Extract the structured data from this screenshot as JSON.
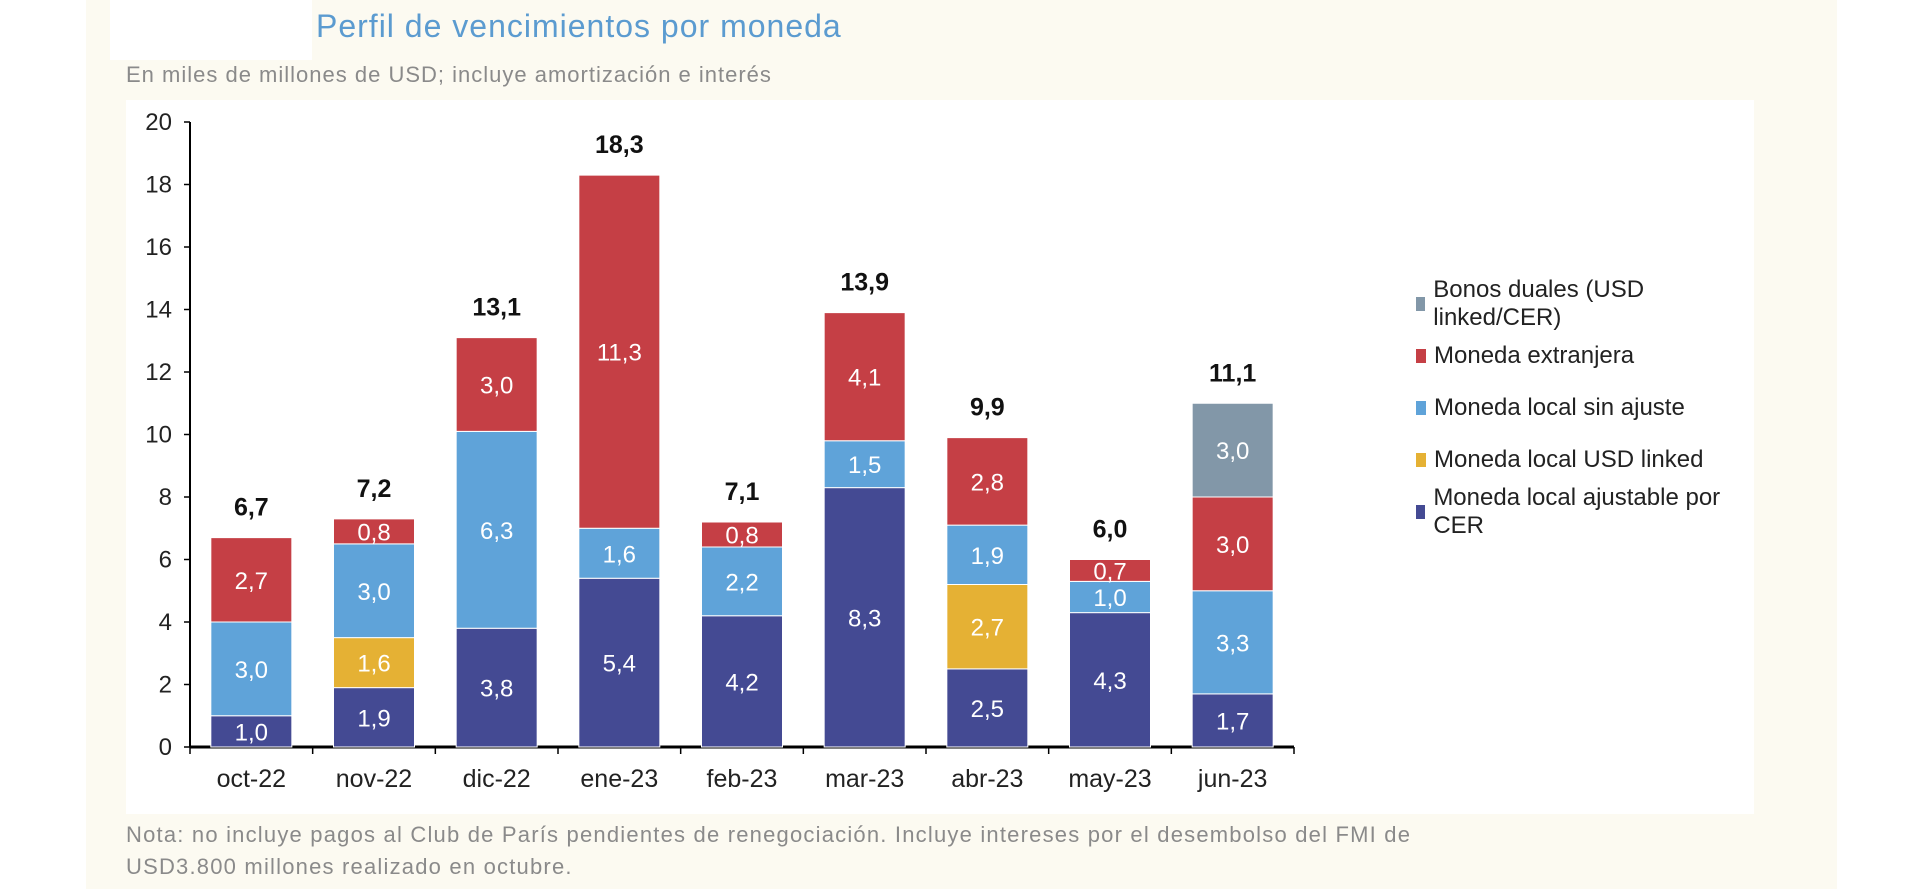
{
  "title": "Perfil de vencimientos por moneda",
  "subtitle": "En miles de millones de USD; incluye amortización e interés",
  "note_line1": "Nota: no incluye pagos al Club de París pendientes de renegociación. Incluye intereses por el desembolso del FMI de",
  "note_line2": "USD3.800 millones realizado en octubre.",
  "chart_data": {
    "type": "bar",
    "stacked": true,
    "title": "Perfil de vencimientos por moneda",
    "ylim": [
      0,
      20
    ],
    "yticks": [
      0,
      2,
      4,
      6,
      8,
      10,
      12,
      14,
      16,
      18,
      20
    ],
    "grid": false,
    "legend_position": "right",
    "categories": [
      "oct-22",
      "nov-22",
      "dic-22",
      "ene-23",
      "feb-23",
      "mar-23",
      "abr-23",
      "may-23",
      "jun-23"
    ],
    "series": [
      {
        "name": "Moneda local ajustable por CER",
        "color": "#444a93",
        "values": [
          1.0,
          1.9,
          3.8,
          5.4,
          4.2,
          8.3,
          2.5,
          4.3,
          1.7
        ]
      },
      {
        "name": "Moneda local USD linked",
        "color": "#e5b134",
        "values": [
          0,
          1.6,
          0,
          0,
          0,
          0,
          2.7,
          0,
          0
        ]
      },
      {
        "name": "Moneda local sin ajuste",
        "color": "#5fa3d9",
        "values": [
          3.0,
          3.0,
          6.3,
          1.6,
          2.2,
          1.5,
          1.9,
          1.0,
          3.3
        ]
      },
      {
        "name": "Moneda extranjera",
        "color": "#c53f45",
        "values": [
          2.7,
          0.8,
          3.0,
          11.3,
          0.8,
          4.1,
          2.8,
          0.7,
          3.0
        ]
      },
      {
        "name": "Bonos duales (USD linked/CER)",
        "color": "#8297a8",
        "values": [
          0,
          0,
          0,
          0,
          0,
          0,
          0,
          0,
          3.0
        ]
      }
    ],
    "totals": [
      "6,7",
      "7,2",
      "13,1",
      "18,3",
      "7,1",
      "13,9",
      "9,9",
      "6,0",
      "11,1"
    ],
    "legend_order": [
      4,
      3,
      2,
      1,
      0
    ]
  }
}
